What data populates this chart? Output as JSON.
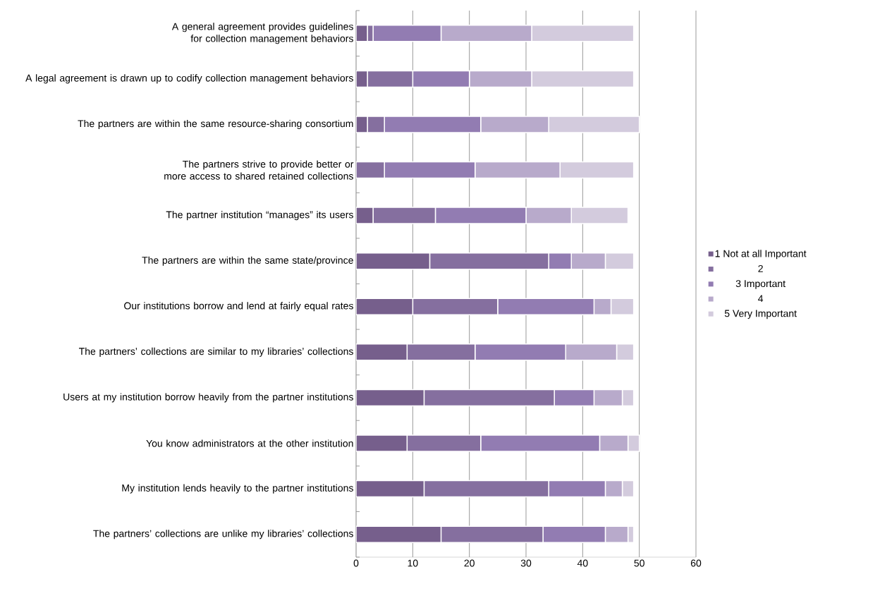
{
  "chart_data": {
    "type": "bar",
    "orientation": "horizontal",
    "stacked": true,
    "grid": "x",
    "legend": "right",
    "xlim": [
      0,
      60
    ],
    "xticks": [
      0,
      10,
      20,
      30,
      40,
      50,
      60
    ],
    "categories": [
      "A general agreement provides guidelines for collection management behaviors",
      "A legal agreement is drawn up to codify collection management behaviors",
      "The partners are within the same resource-sharing consortium",
      "The partners strive to provide better or more access to shared retained collections",
      "The partner institution “manages” its users",
      "The partners are within the same state/province",
      "Our institutions borrow and lend at fairly equal rates",
      "The partners’ collections are similar to my libraries’ collections",
      "Users at my institution borrow heavily from the partner institutions",
      "You know administrators at the other institution",
      "My institution lends heavily to the partner institutions",
      "The partners’ collections are unlike my libraries’ collections"
    ],
    "series": [
      {
        "name": "1 Not at all Important",
        "color": "#765f8c",
        "values": [
          2,
          2,
          2,
          0,
          3,
          13,
          10,
          9,
          12,
          9,
          12,
          15
        ]
      },
      {
        "name": "2",
        "color": "#856f9f",
        "values": [
          1,
          8,
          3,
          5,
          11,
          21,
          15,
          12,
          23,
          13,
          22,
          18
        ]
      },
      {
        "name": "3 Important",
        "color": "#927cb2",
        "values": [
          12,
          10,
          17,
          16,
          16,
          4,
          17,
          16,
          7,
          21,
          10,
          11
        ]
      },
      {
        "name": "4",
        "color": "#b8aacb",
        "values": [
          16,
          11,
          12,
          15,
          8,
          6,
          3,
          9,
          5,
          5,
          3,
          4
        ]
      },
      {
        "name": "5 Very Important",
        "color": "#d3cbdd",
        "values": [
          18,
          18,
          16,
          13,
          10,
          5,
          4,
          3,
          2,
          2,
          2,
          1
        ]
      }
    ]
  }
}
